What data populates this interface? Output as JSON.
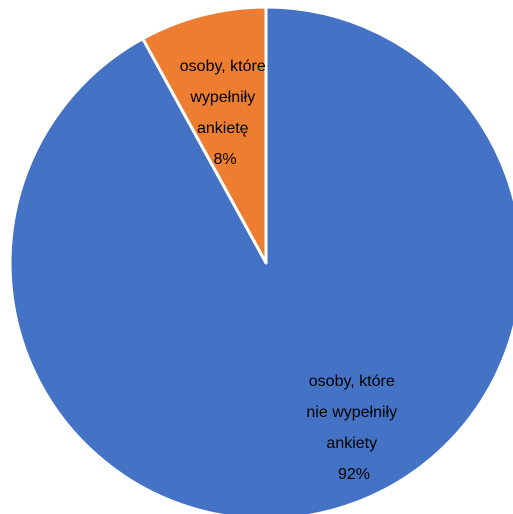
{
  "chart_data": {
    "type": "pie",
    "slices": [
      {
        "label_lines": [
          "osoby, które",
          "wypełniły",
          "ankietę",
          "8%"
        ],
        "value": 8,
        "color": "#ED7D31"
      },
      {
        "label_lines": [
          "osoby, które",
          "nie wypełniły",
          "ankiety",
          "92%"
        ],
        "value": 92,
        "color": "#4472C4"
      }
    ],
    "start": "top",
    "direction": "counterclockwise",
    "border_color": "#FFFFFF"
  }
}
